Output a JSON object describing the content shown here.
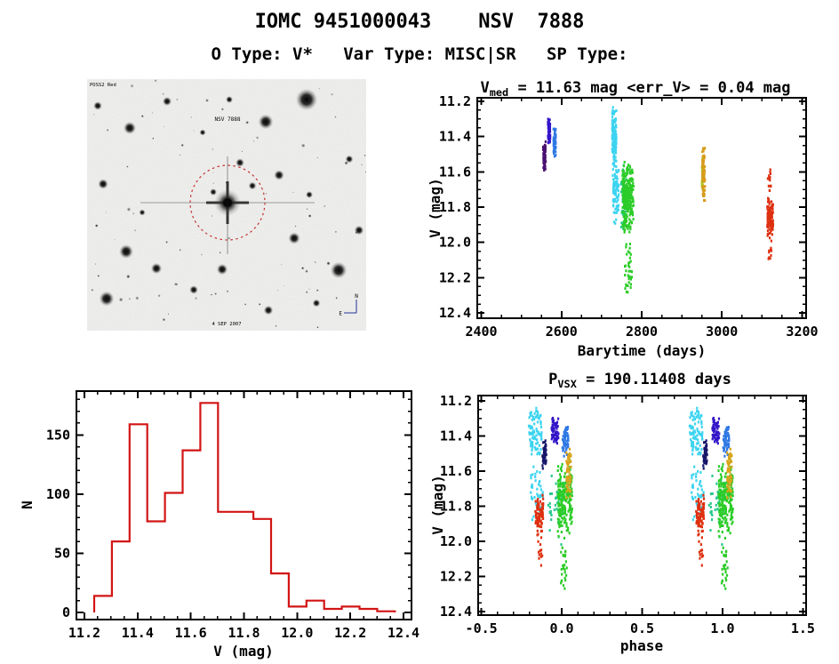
{
  "header": {
    "title": "IOMC 9451000043    NSV  7888",
    "subtitle": "O Type: V*   Var Type: MISC|SR   SP Type:"
  },
  "finder": {
    "survey_label": "POSS2 Red",
    "target_label": "NSV 7888",
    "date_label": "4 SEP 2007",
    "compass_n": "N",
    "compass_e": "E",
    "circle_color": "#C43030",
    "target_label_color": "#B22020",
    "annotation_color": "#223399",
    "seed": 7
  },
  "chart_data": [
    {
      "id": "lightcurve",
      "type": "scatter",
      "title_parts": [
        {
          "t": "V"
        },
        {
          "t": "med",
          "sub": true
        },
        {
          "t": " =  11.63 mag <err_V> =  0.04 mag"
        }
      ],
      "xlabel": "Barytime (days)",
      "ylabel": "V (mag)",
      "xlim": [
        2400,
        3200
      ],
      "ylim": [
        11.2,
        12.4
      ],
      "y_inverted": true,
      "grid": false,
      "xticks": {
        "major": [
          2400,
          2600,
          2800,
          3000,
          3200
        ],
        "labels": [
          "2400",
          "2600",
          "2800",
          "3000",
          "3200"
        ],
        "minor_step": 50
      },
      "yticks": {
        "major": [
          11.2,
          11.4,
          11.6,
          11.8,
          12.0,
          12.2,
          12.4
        ],
        "labels": [
          "11.2",
          "11.4",
          "11.6",
          "11.8",
          "12.0",
          "12.2",
          "12.4"
        ],
        "minor_step": 0.05
      },
      "clusters": [
        {
          "name": "epoch1-purple",
          "color": "#4A1070",
          "bands": [
            {
              "x": [
                2554,
                2561
              ],
              "y": [
                11.42,
                11.62
              ],
              "n": 70
            }
          ]
        },
        {
          "name": "epoch1-indigo",
          "color": "#3414C8",
          "bands": [
            {
              "x": [
                2566,
                2572
              ],
              "y": [
                11.29,
                11.46
              ],
              "n": 62
            }
          ]
        },
        {
          "name": "epoch1-blue",
          "color": "#2E78E4",
          "bands": [
            {
              "x": [
                2580,
                2586
              ],
              "y": [
                11.33,
                11.53
              ],
              "n": 62
            }
          ]
        },
        {
          "name": "epoch2-cyan",
          "color": "#3CD4F0",
          "bands": [
            {
              "x": [
                2726,
                2737
              ],
              "y": [
                11.22,
                11.58
              ],
              "n": 150
            },
            {
              "x": [
                2728,
                2743
              ],
              "y": [
                11.52,
                11.9
              ],
              "n": 85
            }
          ]
        },
        {
          "name": "epoch2-teal",
          "color": "#28C88C",
          "bands": [
            {
              "x": [
                2748,
                2762
              ],
              "y": [
                11.55,
                11.97
              ],
              "n": 40
            }
          ]
        },
        {
          "name": "epoch2-green",
          "color": "#2CCC28",
          "bands": [
            {
              "x": [
                2752,
                2780
              ],
              "y": [
                11.52,
                11.98
              ],
              "n": 270
            },
            {
              "x": [
                2758,
                2776
              ],
              "y": [
                11.98,
                12.33
              ],
              "n": 36
            }
          ]
        },
        {
          "name": "epoch3-yellowgreen",
          "color": "#AEC424",
          "bands": [
            {
              "x": [
                2950,
                2955
              ],
              "y": [
                11.5,
                11.73
              ],
              "n": 45
            }
          ]
        },
        {
          "name": "epoch3-gold",
          "color": "#D89C1C",
          "bands": [
            {
              "x": [
                2951,
                2958
              ],
              "y": [
                11.44,
                11.8
              ],
              "n": 75
            }
          ]
        },
        {
          "name": "epoch4-red",
          "color": "#DE3010",
          "bands": [
            {
              "x": [
                3114,
                3126
              ],
              "y": [
                11.56,
                11.75
              ],
              "n": 14
            },
            {
              "x": [
                3113,
                3128
              ],
              "y": [
                11.74,
                11.98
              ],
              "n": 118
            },
            {
              "x": [
                3116,
                3124
              ],
              "y": [
                11.98,
                12.16
              ],
              "n": 11
            }
          ]
        }
      ]
    },
    {
      "id": "histogram",
      "type": "bar",
      "xlabel": "V (mag)",
      "ylabel": "N",
      "xlim": [
        11.2,
        12.4
      ],
      "ylim": [
        0,
        180
      ],
      "grid": false,
      "color": "#D21414",
      "bin_start": 11.237,
      "bin_width": 0.0665,
      "values": [
        14,
        60,
        159,
        77,
        101,
        137,
        177,
        85,
        85,
        79,
        33,
        5,
        10,
        3,
        5,
        3,
        1
      ],
      "xticks": {
        "major": [
          11.2,
          11.4,
          11.6,
          11.8,
          12.0,
          12.2,
          12.4
        ],
        "labels": [
          "11.2",
          "11.4",
          "11.6",
          "11.8",
          "12.0",
          "12.2",
          "12.4"
        ],
        "minor_step": 0.05
      },
      "yticks": {
        "major": [
          0,
          50,
          100,
          150
        ],
        "labels": [
          "0",
          "50",
          "100",
          "150"
        ],
        "minor_step": 10
      }
    },
    {
      "id": "phase",
      "type": "scatter",
      "title_parts": [
        {
          "t": "P"
        },
        {
          "t": "VSX",
          "sub": true
        },
        {
          "t": " =  190.11408 days"
        }
      ],
      "xlabel": "phase",
      "ylabel": "V (mag)",
      "xlim": [
        -0.5,
        1.5
      ],
      "ylim": [
        11.2,
        12.4
      ],
      "y_inverted": true,
      "grid": false,
      "duplicate_offset": 1.0,
      "xticks": {
        "major": [
          -0.5,
          0.0,
          0.5,
          1.0,
          1.5
        ],
        "labels": [
          "-0.5",
          "0.0",
          "0.5",
          "1.0",
          "1.5"
        ],
        "minor_step": 0.1
      },
      "yticks": {
        "major": [
          11.2,
          11.4,
          11.6,
          11.8,
          12.0,
          12.2,
          12.4
        ],
        "labels": [
          "11.2",
          "11.4",
          "11.6",
          "11.8",
          "12.0",
          "12.2",
          "12.4"
        ],
        "minor_step": 0.05
      },
      "clusters": [
        {
          "name": "cyan",
          "color": "#3CD4F0",
          "bands": [
            {
              "x": [
                -0.205,
                -0.125
              ],
              "y": [
                11.22,
                11.56
              ],
              "n": 95
            },
            {
              "x": [
                -0.195,
                -0.115
              ],
              "y": [
                11.56,
                11.92
              ],
              "n": 50
            }
          ]
        },
        {
          "name": "red",
          "color": "#DE3010",
          "bands": [
            {
              "x": [
                -0.165,
                -0.115
              ],
              "y": [
                11.73,
                11.97
              ],
              "n": 95
            },
            {
              "x": [
                -0.15,
                -0.12
              ],
              "y": [
                11.97,
                12.14
              ],
              "n": 12
            }
          ]
        },
        {
          "name": "navy",
          "color": "#16166A",
          "bands": [
            {
              "x": [
                -0.12,
                -0.096
              ],
              "y": [
                11.42,
                11.6
              ],
              "n": 45
            }
          ]
        },
        {
          "name": "indigo",
          "color": "#3414C8",
          "bands": [
            {
              "x": [
                -0.064,
                -0.02
              ],
              "y": [
                11.29,
                11.45
              ],
              "n": 60
            }
          ]
        },
        {
          "name": "lightblue",
          "color": "#2E78E4",
          "bands": [
            {
              "x": [
                0.004,
                0.044
              ],
              "y": [
                11.33,
                11.53
              ],
              "n": 60
            }
          ]
        },
        {
          "name": "teal",
          "color": "#28C88C",
          "bands": [
            {
              "x": [
                -0.09,
                0.02
              ],
              "y": [
                11.58,
                12.05
              ],
              "n": 42
            }
          ]
        },
        {
          "name": "green",
          "color": "#2CCC28",
          "bands": [
            {
              "x": [
                -0.025,
                0.065
              ],
              "y": [
                11.5,
                12.0
              ],
              "n": 210
            },
            {
              "x": [
                -0.005,
                0.035
              ],
              "y": [
                12.0,
                12.32
              ],
              "n": 26
            }
          ]
        },
        {
          "name": "gold",
          "color": "#D8A41C",
          "bands": [
            {
              "x": [
                0.028,
                0.058
              ],
              "y": [
                11.46,
                11.8
              ],
              "n": 62
            }
          ]
        }
      ]
    }
  ]
}
